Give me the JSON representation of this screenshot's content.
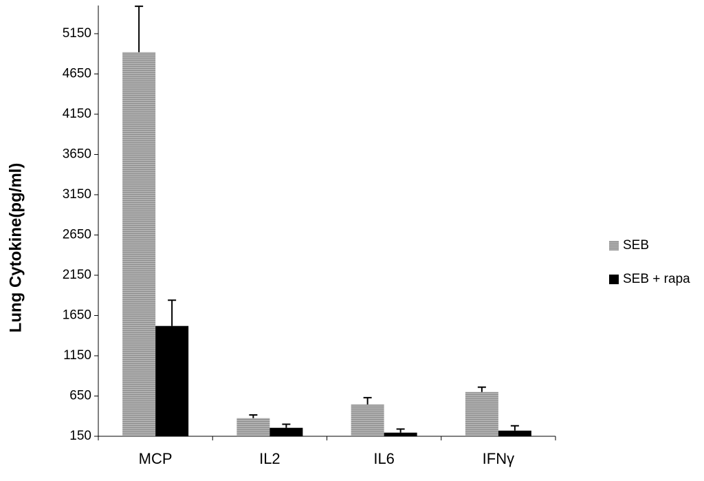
{
  "chart_data": {
    "type": "bar",
    "y_label": "Lung Cytokine(pg/ml)",
    "categories": [
      "MCP",
      "IL2",
      "IL6",
      "IFNγ"
    ],
    "series": [
      {
        "name": "SEB",
        "color": "#a6a6a6",
        "values": [
          4920,
          375,
          545,
          700
        ],
        "error": [
          570,
          40,
          85,
          60
        ]
      },
      {
        "name": "SEB + rapa",
        "color": "#000000",
        "values": [
          1520,
          255,
          195,
          220
        ],
        "error": [
          320,
          45,
          45,
          60
        ]
      }
    ],
    "ylim": [
      150,
      5500
    ],
    "yticks": [
      150,
      650,
      1150,
      1650,
      2150,
      2650,
      3150,
      3650,
      4150,
      4650,
      5150
    ],
    "legend": "right"
  }
}
